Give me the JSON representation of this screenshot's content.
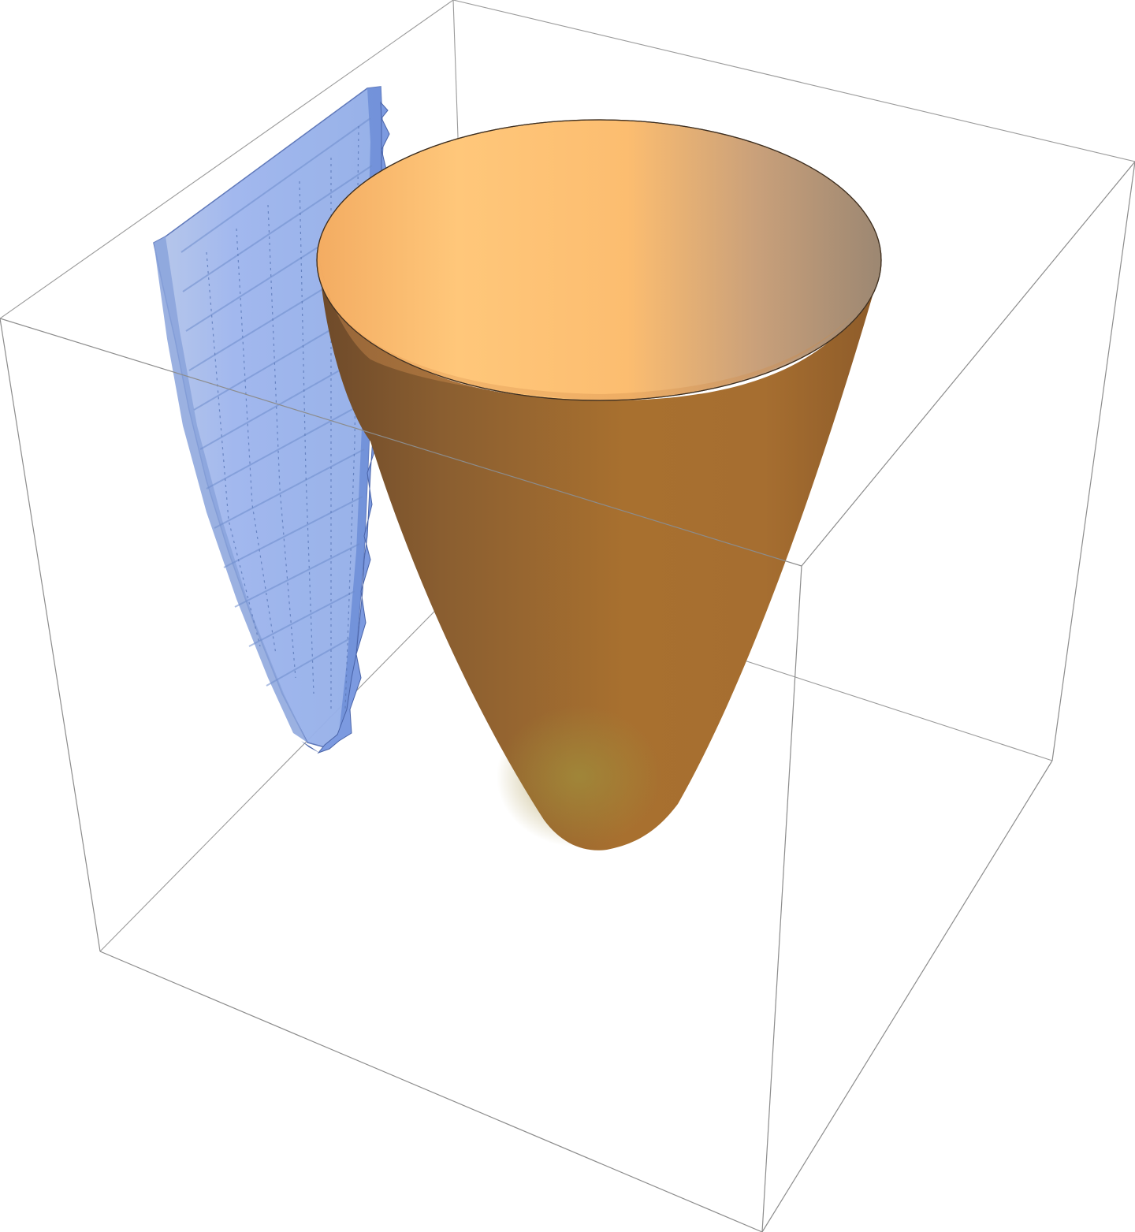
{
  "scene": {
    "background": "#ffffff",
    "box_color": "#8c8c8c",
    "surfaces": [
      {
        "name": "paraboloid-bowl",
        "shape": "paraboloid",
        "colors": {
          "rim_light": "#ffc97a",
          "rim_mid": "#f5b56a",
          "rim_dark": "#9e8872",
          "body_dark": "#7a5530",
          "body_mid": "#a8722f",
          "body_light": "#c0843a",
          "bottom_glow": "#9c7b38"
        }
      },
      {
        "name": "blue-parabolic-sheet",
        "shape": "parabolic-cylinder",
        "colors": {
          "fill": "#9fb8ee",
          "shade": "#7d98d8",
          "edge": "#4a64a8"
        }
      }
    ]
  }
}
